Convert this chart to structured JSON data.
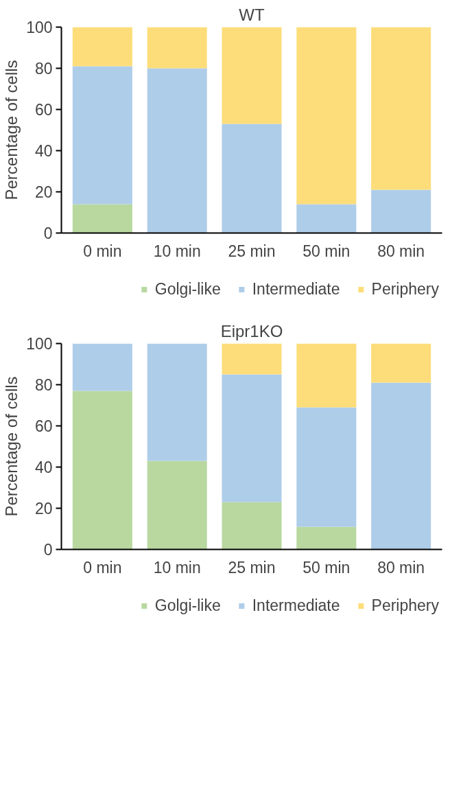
{
  "chart_data": [
    {
      "type": "bar",
      "title": "WT",
      "ylabel": "Percentage of cells",
      "stacked": true,
      "categories": [
        "0 min",
        "10 min",
        "25 min",
        "50 min",
        "80 min"
      ],
      "ylim": [
        0,
        100
      ],
      "yticks": [
        0,
        20,
        40,
        60,
        80,
        100
      ],
      "grid": false,
      "legend": "bottom",
      "series": [
        {
          "name": "Golgi-like",
          "color": "#b8d8a0",
          "values": [
            14,
            0,
            0,
            0,
            0
          ]
        },
        {
          "name": "Intermediate",
          "color": "#aecde9",
          "values": [
            67,
            80,
            53,
            14,
            21
          ]
        },
        {
          "name": "Periphery",
          "color": "#fddd7a",
          "values": [
            19,
            20,
            47,
            86,
            79
          ]
        }
      ]
    },
    {
      "type": "bar",
      "title": "Eipr1KO",
      "ylabel": "Percentage of cells",
      "stacked": true,
      "categories": [
        "0 min",
        "10 min",
        "25 min",
        "50 min",
        "80 min"
      ],
      "ylim": [
        0,
        100
      ],
      "yticks": [
        0,
        20,
        40,
        60,
        80,
        100
      ],
      "grid": false,
      "legend": "bottom",
      "series": [
        {
          "name": "Golgi-like",
          "color": "#b8d8a0",
          "values": [
            77,
            43,
            23,
            11,
            0
          ]
        },
        {
          "name": "Intermediate",
          "color": "#aecde9",
          "values": [
            23,
            57,
            62,
            58,
            81
          ]
        },
        {
          "name": "Periphery",
          "color": "#fddd7a",
          "values": [
            0,
            0,
            15,
            31,
            19
          ]
        }
      ]
    }
  ]
}
